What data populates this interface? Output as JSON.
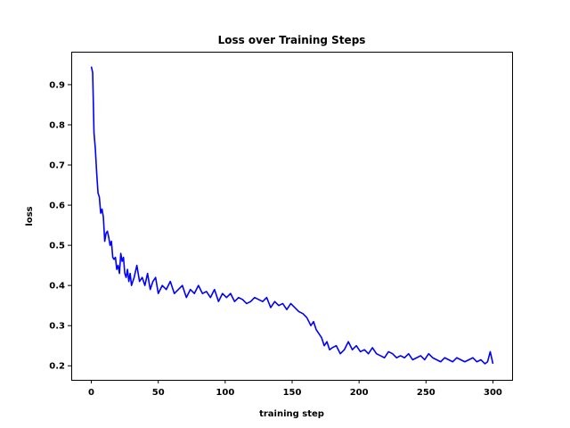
{
  "chart_data": {
    "type": "line",
    "title": "Loss over Training Steps",
    "xlabel": "training step",
    "ylabel": "loss",
    "xlim": [
      -15,
      315
    ],
    "ylim": [
      0.165,
      0.982
    ],
    "x_ticks": [
      0,
      50,
      100,
      150,
      200,
      250,
      300
    ],
    "y_ticks": [
      0.2,
      0.3,
      0.4,
      0.5,
      0.6,
      0.7,
      0.8,
      0.9
    ],
    "grid": false,
    "legend": "none",
    "series": [
      {
        "color": "#0000ff",
        "x": [
          0,
          1,
          2,
          3,
          4,
          5,
          6,
          7,
          8,
          9,
          10,
          11,
          12,
          13,
          14,
          15,
          16,
          17,
          18,
          19,
          20,
          21,
          22,
          23,
          24,
          25,
          26,
          27,
          28,
          29,
          30,
          32,
          34,
          36,
          38,
          40,
          42,
          44,
          46,
          48,
          50,
          53,
          56,
          59,
          62,
          65,
          68,
          71,
          74,
          77,
          80,
          83,
          86,
          89,
          92,
          95,
          98,
          101,
          104,
          107,
          110,
          113,
          116,
          119,
          122,
          125,
          128,
          131,
          134,
          137,
          140,
          143,
          146,
          149,
          152,
          155,
          158,
          161,
          164,
          166,
          168,
          170,
          172,
          174,
          176,
          178,
          180,
          183,
          186,
          189,
          192,
          195,
          198,
          201,
          204,
          207,
          210,
          213,
          216,
          219,
          222,
          225,
          228,
          231,
          234,
          237,
          240,
          243,
          246,
          249,
          252,
          255,
          258,
          261,
          264,
          267,
          270,
          273,
          276,
          279,
          282,
          285,
          288,
          291,
          294,
          296,
          298,
          300
        ],
        "y": [
          0.945,
          0.93,
          0.78,
          0.74,
          0.68,
          0.63,
          0.62,
          0.58,
          0.59,
          0.57,
          0.51,
          0.53,
          0.535,
          0.52,
          0.5,
          0.51,
          0.47,
          0.465,
          0.47,
          0.44,
          0.45,
          0.43,
          0.48,
          0.46,
          0.47,
          0.43,
          0.42,
          0.44,
          0.41,
          0.43,
          0.4,
          0.42,
          0.45,
          0.41,
          0.42,
          0.4,
          0.43,
          0.39,
          0.41,
          0.42,
          0.38,
          0.4,
          0.39,
          0.41,
          0.38,
          0.39,
          0.4,
          0.37,
          0.39,
          0.38,
          0.4,
          0.38,
          0.385,
          0.37,
          0.39,
          0.36,
          0.38,
          0.37,
          0.38,
          0.36,
          0.37,
          0.365,
          0.355,
          0.36,
          0.37,
          0.365,
          0.36,
          0.37,
          0.345,
          0.36,
          0.35,
          0.355,
          0.34,
          0.355,
          0.345,
          0.335,
          0.33,
          0.32,
          0.3,
          0.31,
          0.29,
          0.28,
          0.27,
          0.25,
          0.26,
          0.24,
          0.245,
          0.25,
          0.23,
          0.24,
          0.26,
          0.24,
          0.25,
          0.235,
          0.24,
          0.23,
          0.245,
          0.23,
          0.225,
          0.22,
          0.235,
          0.23,
          0.22,
          0.225,
          0.22,
          0.23,
          0.215,
          0.22,
          0.225,
          0.215,
          0.23,
          0.22,
          0.215,
          0.21,
          0.22,
          0.215,
          0.21,
          0.22,
          0.215,
          0.21,
          0.215,
          0.22,
          0.21,
          0.215,
          0.205,
          0.21,
          0.235,
          0.205
        ]
      }
    ]
  }
}
